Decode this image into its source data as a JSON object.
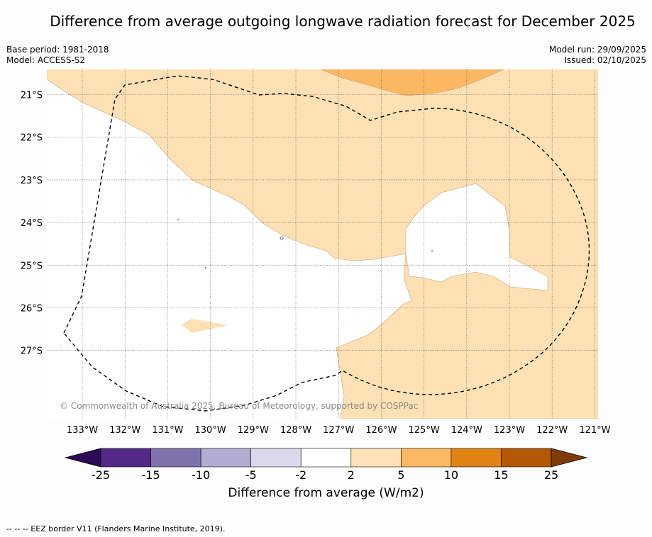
{
  "title": "Difference from average outgoing longwave radiation forecast for December 2025",
  "base_period": "Base period: 1981-2018",
  "model": "Model: ACCESS-S2",
  "model_run": "Model run: 29/09/2025",
  "issued": "Issued: 02/10/2025",
  "copyright": "© Commonwealth of Australia 2025, Bureau of Meteorology, supported by COSPPac",
  "footer": "--  --  -- EEZ border V11 (Flanders Marine Institute, 2019).",
  "map": {
    "lat_labels": [
      "21°S",
      "22°S",
      "23°S",
      "24°S",
      "25°S",
      "26°S",
      "27°S"
    ],
    "lon_labels": [
      "133°W",
      "132°W",
      "131°W",
      "130°W",
      "129°W",
      "128°W",
      "127°W",
      "126°W",
      "125°W",
      "124°W",
      "123°W",
      "122°W",
      "121°W"
    ],
    "region_colors": {
      "light": "#fde0b4",
      "medium": "#fbb762",
      "border": "#c8a27a"
    }
  },
  "colorbar": {
    "label": "Difference from average (W/m2)",
    "ticks": [
      "-25",
      "-15",
      "-10",
      "-5",
      "-2",
      "2",
      "5",
      "10",
      "15",
      "25"
    ],
    "colors": [
      "#2e0854",
      "#542887",
      "#8073ac",
      "#b2abd2",
      "#d8daeb",
      "#ffffff",
      "#fee0b6",
      "#fdb863",
      "#e08214",
      "#b35806",
      "#7f3b08"
    ]
  }
}
